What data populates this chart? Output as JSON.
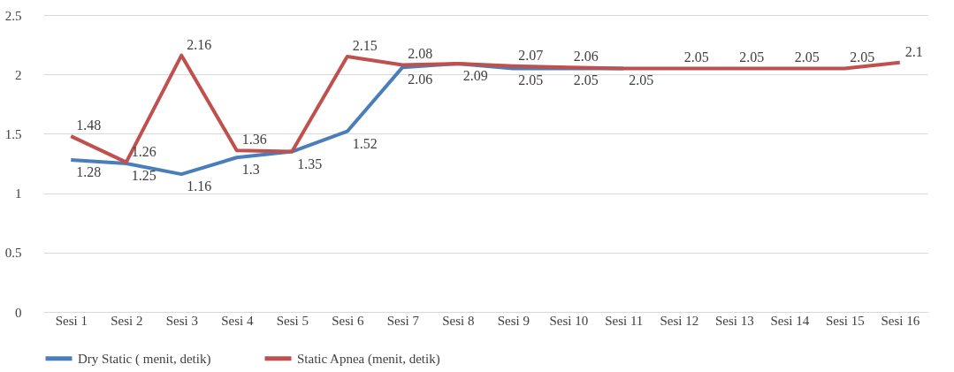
{
  "chart_data": {
    "type": "line",
    "categories": [
      "Sesi 1",
      "Sesi 2",
      "Sesi 3",
      "Sesi 4",
      "Sesi 5",
      "Sesi 6",
      "Sesi 7",
      "Sesi 8",
      "Sesi 9",
      "Sesi 10",
      "Sesi 11",
      "Sesi 12",
      "Sesi 13",
      "Sesi 14",
      "Sesi 15",
      "Sesi 16"
    ],
    "series": [
      {
        "name": "Dry Static ( menit, detik)",
        "color": "#4a7ebb",
        "values": [
          1.28,
          1.25,
          1.16,
          1.3,
          1.35,
          1.52,
          2.06,
          2.09,
          2.05,
          2.05,
          2.05,
          null,
          null,
          null,
          null,
          null
        ],
        "value_labels": [
          "1.28",
          "1.25",
          "1.16",
          "1.3",
          "1.35",
          "1.52",
          "2.06",
          "2.09",
          "2.05",
          "2.05",
          "2.05",
          null,
          null,
          null,
          null,
          null
        ]
      },
      {
        "name": "Static Apnea (menit, detik)",
        "color": "#c0504d",
        "values": [
          1.48,
          1.26,
          2.16,
          1.36,
          1.35,
          2.15,
          2.08,
          2.09,
          2.07,
          2.06,
          2.05,
          2.05,
          2.05,
          2.05,
          2.05,
          2.1
        ],
        "value_labels": [
          "1.48",
          "1.26",
          "2.16",
          "1.36",
          null,
          "2.15",
          "2.08",
          null,
          "2.07",
          "2.06",
          null,
          "2.05",
          "2.05",
          "2.05",
          "2.05",
          "2.1"
        ]
      }
    ],
    "ylim": [
      0,
      2.5
    ],
    "yticks": [
      0,
      0.5,
      1,
      1.5,
      2,
      2.5
    ],
    "grid": "y",
    "legend": "bottom",
    "marker": "none",
    "line_style": "solid"
  }
}
